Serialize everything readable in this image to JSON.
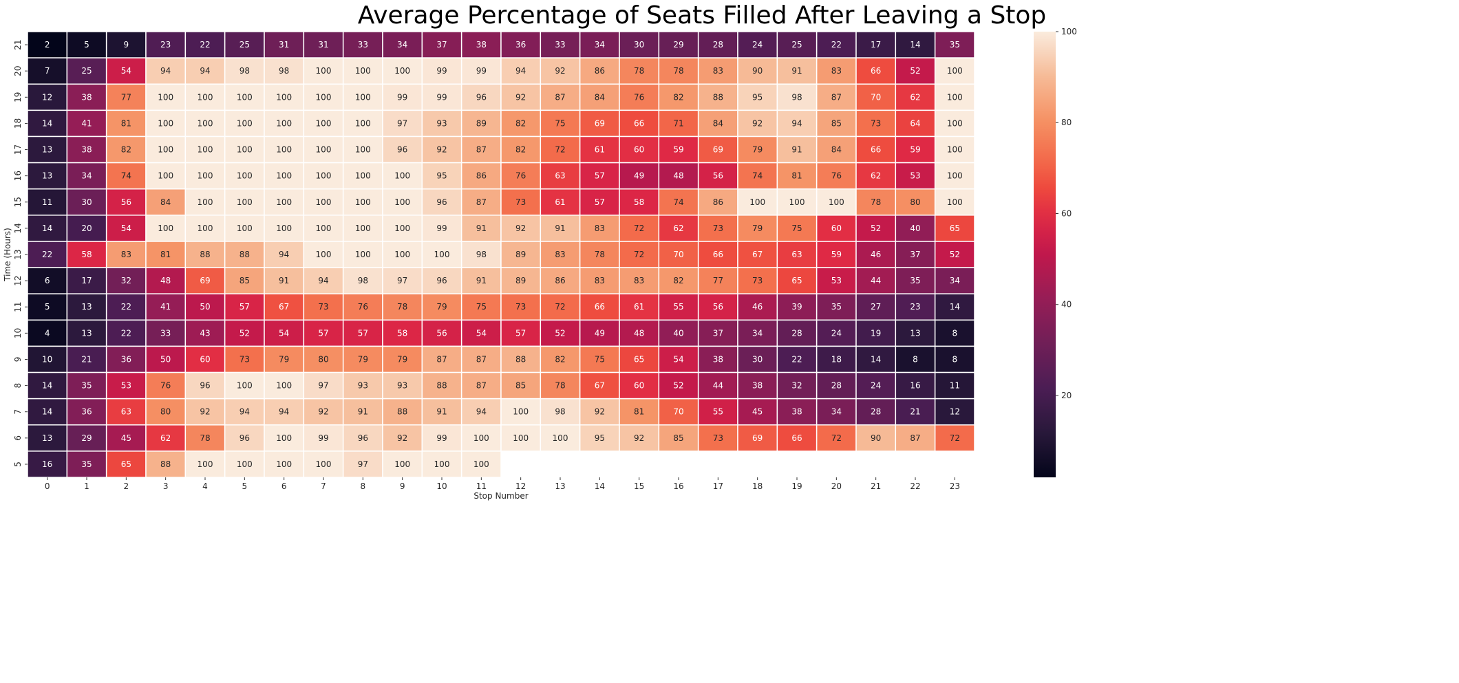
{
  "chart_data": {
    "type": "heatmap",
    "title": "Average Percentage of Seats Filled After Leaving a Stop",
    "xlabel": "Stop Number",
    "ylabel": "Time (Hours)",
    "x_categories": [
      "0",
      "1",
      "2",
      "3",
      "4",
      "5",
      "6",
      "7",
      "8",
      "9",
      "10",
      "11",
      "12",
      "13",
      "14",
      "15",
      "16",
      "17",
      "18",
      "19",
      "20",
      "21",
      "22",
      "23"
    ],
    "y_categories": [
      "21",
      "20",
      "19",
      "18",
      "17",
      "16",
      "15",
      "14",
      "13",
      "12",
      "11",
      "10",
      "9",
      "8",
      "7",
      "6",
      "5"
    ],
    "values": [
      [
        2,
        5,
        9,
        23,
        22,
        25,
        31,
        31,
        33,
        34,
        37,
        38,
        36,
        33,
        34,
        30,
        29,
        28,
        24,
        25,
        22,
        17,
        14,
        35
      ],
      [
        7,
        25,
        54,
        94,
        94,
        98,
        98,
        100,
        100,
        100,
        99,
        99,
        94,
        92,
        86,
        78,
        78,
        83,
        90,
        91,
        83,
        66,
        52,
        100
      ],
      [
        12,
        38,
        77,
        100,
        100,
        100,
        100,
        100,
        100,
        99,
        99,
        96,
        92,
        87,
        84,
        76,
        82,
        88,
        95,
        98,
        87,
        70,
        62,
        100
      ],
      [
        14,
        41,
        81,
        100,
        100,
        100,
        100,
        100,
        100,
        97,
        93,
        89,
        82,
        75,
        69,
        66,
        71,
        84,
        92,
        94,
        85,
        73,
        64,
        100
      ],
      [
        13,
        38,
        82,
        100,
        100,
        100,
        100,
        100,
        100,
        96,
        92,
        87,
        82,
        72,
        61,
        60,
        59,
        69,
        79,
        91,
        84,
        66,
        59,
        100
      ],
      [
        13,
        34,
        74,
        100,
        100,
        100,
        100,
        100,
        100,
        100,
        95,
        86,
        76,
        63,
        57,
        49,
        48,
        56,
        74,
        81,
        76,
        62,
        53,
        100
      ],
      [
        11,
        30,
        56,
        84,
        100,
        100,
        100,
        100,
        100,
        100,
        96,
        87,
        73,
        61,
        57,
        58,
        74,
        86,
        100,
        100,
        100,
        78,
        80,
        100
      ],
      [
        14,
        20,
        54,
        100,
        100,
        100,
        100,
        100,
        100,
        100,
        99,
        91,
        92,
        91,
        83,
        72,
        62,
        73,
        79,
        75,
        60,
        52,
        40,
        65
      ],
      [
        22,
        58,
        83,
        81,
        88,
        88,
        94,
        100,
        100,
        100,
        100,
        98,
        89,
        83,
        78,
        72,
        70,
        66,
        67,
        63,
        59,
        46,
        37,
        52
      ],
      [
        6,
        17,
        32,
        48,
        69,
        85,
        91,
        94,
        98,
        97,
        96,
        91,
        89,
        86,
        83,
        83,
        82,
        77,
        73,
        65,
        53,
        44,
        35,
        34
      ],
      [
        5,
        13,
        22,
        41,
        50,
        57,
        67,
        73,
        76,
        78,
        79,
        75,
        73,
        72,
        66,
        61,
        55,
        56,
        46,
        39,
        35,
        27,
        23,
        14
      ],
      [
        4,
        13,
        22,
        33,
        43,
        52,
        54,
        57,
        57,
        58,
        56,
        54,
        57,
        52,
        49,
        48,
        40,
        37,
        34,
        28,
        24,
        19,
        13,
        8
      ],
      [
        10,
        21,
        36,
        50,
        60,
        73,
        79,
        80,
        79,
        79,
        87,
        87,
        88,
        82,
        75,
        65,
        54,
        38,
        30,
        22,
        18,
        14,
        8,
        8
      ],
      [
        14,
        35,
        53,
        76,
        96,
        100,
        100,
        97,
        93,
        93,
        88,
        87,
        85,
        78,
        67,
        60,
        52,
        44,
        38,
        32,
        28,
        24,
        16,
        11
      ],
      [
        14,
        36,
        63,
        80,
        92,
        94,
        94,
        92,
        91,
        88,
        91,
        94,
        100,
        98,
        92,
        81,
        70,
        55,
        45,
        38,
        34,
        28,
        21,
        12
      ],
      [
        13,
        29,
        45,
        62,
        78,
        96,
        100,
        99,
        96,
        92,
        99,
        100,
        100,
        100,
        95,
        92,
        85,
        73,
        69,
        66,
        72,
        90,
        87,
        72
      ],
      [
        16,
        35,
        65,
        88,
        100,
        100,
        100,
        100,
        97,
        100,
        100,
        100,
        null,
        null,
        null,
        null,
        null,
        null,
        null,
        null,
        null,
        null,
        null,
        null
      ]
    ],
    "colormap": "rocket",
    "colorbar": {
      "ticks": [
        "20",
        "40",
        "60",
        "80",
        "100"
      ],
      "range": [
        2,
        100
      ]
    },
    "annotations": true,
    "grid": false,
    "legend": "colorbar-right"
  }
}
